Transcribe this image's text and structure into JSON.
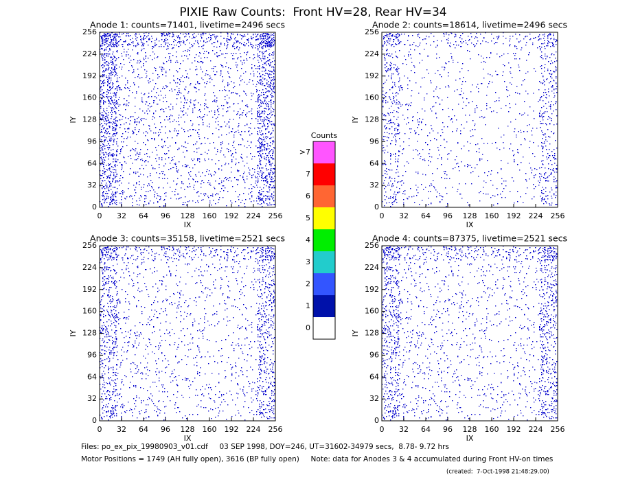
{
  "title": "PIXIE Raw Counts:  Front HV=28, Rear HV=34",
  "chart_data": [
    {
      "type": "heatmap",
      "title": "Anode 1: counts=71401, livetime=2496 secs",
      "xlabel": "IX",
      "ylabel": "IY",
      "xlim": [
        0,
        256
      ],
      "ylim": [
        0,
        256
      ],
      "xticks": [
        0,
        32,
        64,
        96,
        128,
        160,
        192,
        224,
        256
      ],
      "yticks": [
        0,
        32,
        64,
        96,
        128,
        160,
        192,
        224,
        256
      ]
    },
    {
      "type": "heatmap",
      "title": "Anode 2: counts=18614, livetime=2496 secs",
      "xlabel": "IX",
      "ylabel": "IY",
      "xlim": [
        0,
        256
      ],
      "ylim": [
        0,
        256
      ],
      "xticks": [
        0,
        32,
        64,
        96,
        128,
        160,
        192,
        224,
        256
      ],
      "yticks": [
        0,
        32,
        64,
        96,
        128,
        160,
        192,
        224,
        256
      ]
    },
    {
      "type": "heatmap",
      "title": "Anode 3: counts=35158, livetime=2521 secs",
      "xlabel": "IX",
      "ylabel": "IY",
      "xlim": [
        0,
        256
      ],
      "ylim": [
        0,
        256
      ],
      "xticks": [
        0,
        32,
        64,
        96,
        128,
        160,
        192,
        224,
        256
      ],
      "yticks": [
        0,
        32,
        64,
        96,
        128,
        160,
        192,
        224,
        256
      ]
    },
    {
      "type": "heatmap",
      "title": "Anode 4: counts=87375, livetime=2521 secs",
      "xlabel": "IX",
      "ylabel": "IY",
      "xlim": [
        0,
        256
      ],
      "ylim": [
        0,
        256
      ],
      "xticks": [
        0,
        32,
        64,
        96,
        128,
        160,
        192,
        224,
        256
      ],
      "yticks": [
        0,
        32,
        64,
        96,
        128,
        160,
        192,
        224,
        256
      ]
    }
  ],
  "colorbar": {
    "title": "Counts",
    "levels": [
      {
        "label": ">7",
        "color": "#ff55ff"
      },
      {
        "label": "7",
        "color": "#ff0000"
      },
      {
        "label": "6",
        "color": "#ff6633"
      },
      {
        "label": "5",
        "color": "#ffff00"
      },
      {
        "label": "4",
        "color": "#00ee00"
      },
      {
        "label": "3",
        "color": "#22cccc"
      },
      {
        "label": "2",
        "color": "#3355ff"
      },
      {
        "label": "1",
        "color": "#0011aa"
      },
      {
        "label": "0",
        "color": "#ffffff"
      }
    ]
  },
  "footer": {
    "files": "Files: po_ex_pix_19980903_v01.cdf     03 SEP 1998, DOY=246, UT=31602-34979 secs,  8.78- 9.72 hrs",
    "motor": "Motor Positions = 1749 (AH fully open), 3616 (BP fully open)     Note: data for Anodes 3 & 4 accumulated during Front HV-on times",
    "created": "(created:  7-Oct-1998 21:48:29.00)"
  }
}
